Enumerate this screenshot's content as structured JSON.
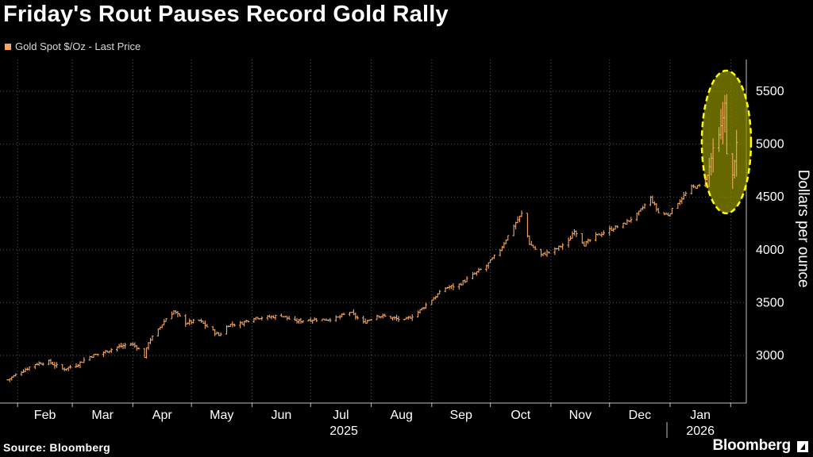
{
  "header": {
    "title": "Friday's Rout Pauses Record Gold Rally",
    "legend_label": "Gold Spot $/Oz - Last Price"
  },
  "footer": {
    "source": "Source: Bloomberg",
    "brand": "Bloomberg"
  },
  "colors": {
    "background": "#000000",
    "series": "#f5a860",
    "highlight_fill": "#8a8a00",
    "highlight_stroke": "#ffff00",
    "grid": "#5a5a5a",
    "text": "#ffffff"
  },
  "chart_data": {
    "type": "line",
    "style": "ohlc-bars",
    "title": "Friday's Rout Pauses Record Gold Rally",
    "ylabel": "Dollars per ounce",
    "ylim": [
      2550,
      5800
    ],
    "yticks": [
      3000,
      3500,
      4000,
      4500,
      5000,
      5500
    ],
    "grid": true,
    "legend_position": "top-left",
    "months": [
      "Feb",
      "Mar",
      "Apr",
      "May",
      "Jun",
      "Jul",
      "Aug",
      "Sep",
      "Oct",
      "Nov",
      "Dec",
      "Jan"
    ],
    "years": [
      {
        "label": "2025",
        "month_range": [
          "Feb",
          "Dec"
        ]
      },
      {
        "label": "2026",
        "month_range": [
          "Jan",
          "Jan"
        ]
      }
    ],
    "series": [
      {
        "name": "Gold Spot $/Oz - Last Price",
        "x": [
          "2025-01-27",
          "2025-02-03",
          "2025-02-10",
          "2025-02-17",
          "2025-02-24",
          "2025-03-03",
          "2025-03-10",
          "2025-03-17",
          "2025-03-24",
          "2025-03-31",
          "2025-04-03",
          "2025-04-07",
          "2025-04-09",
          "2025-04-14",
          "2025-04-18",
          "2025-04-22",
          "2025-04-28",
          "2025-05-05",
          "2025-05-12",
          "2025-05-15",
          "2025-05-20",
          "2025-05-26",
          "2025-06-02",
          "2025-06-09",
          "2025-06-16",
          "2025-06-23",
          "2025-06-30",
          "2025-07-07",
          "2025-07-14",
          "2025-07-21",
          "2025-07-28",
          "2025-08-04",
          "2025-08-11",
          "2025-08-18",
          "2025-08-25",
          "2025-09-01",
          "2025-09-08",
          "2025-09-15",
          "2025-09-22",
          "2025-09-29",
          "2025-10-06",
          "2025-10-13",
          "2025-10-17",
          "2025-10-21",
          "2025-10-27",
          "2025-11-03",
          "2025-11-10",
          "2025-11-13",
          "2025-11-18",
          "2025-11-24",
          "2025-12-01",
          "2025-12-08",
          "2025-12-15",
          "2025-12-22",
          "2025-12-26",
          "2025-12-31",
          "2026-01-05",
          "2026-01-12",
          "2026-01-16",
          "2026-01-20",
          "2026-01-23",
          "2026-01-26",
          "2026-01-28",
          "2026-01-29",
          "2026-01-30",
          "2026-02-02",
          "2026-02-04"
        ],
        "values": [
          2770,
          2850,
          2920,
          2940,
          2870,
          2910,
          2990,
          3030,
          3080,
          3110,
          3080,
          2990,
          3130,
          3240,
          3350,
          3420,
          3310,
          3330,
          3230,
          3190,
          3290,
          3300,
          3360,
          3360,
          3380,
          3320,
          3340,
          3340,
          3350,
          3410,
          3310,
          3380,
          3360,
          3330,
          3410,
          3530,
          3640,
          3670,
          3760,
          3850,
          4000,
          4230,
          4340,
          4060,
          3950,
          4000,
          4080,
          4190,
          4050,
          4130,
          4190,
          4240,
          4330,
          4490,
          4350,
          4330,
          4450,
          4590,
          4600,
          4700,
          4950,
          5080,
          5250,
          5400,
          4900,
          4700,
          5000
        ]
      }
    ]
  }
}
